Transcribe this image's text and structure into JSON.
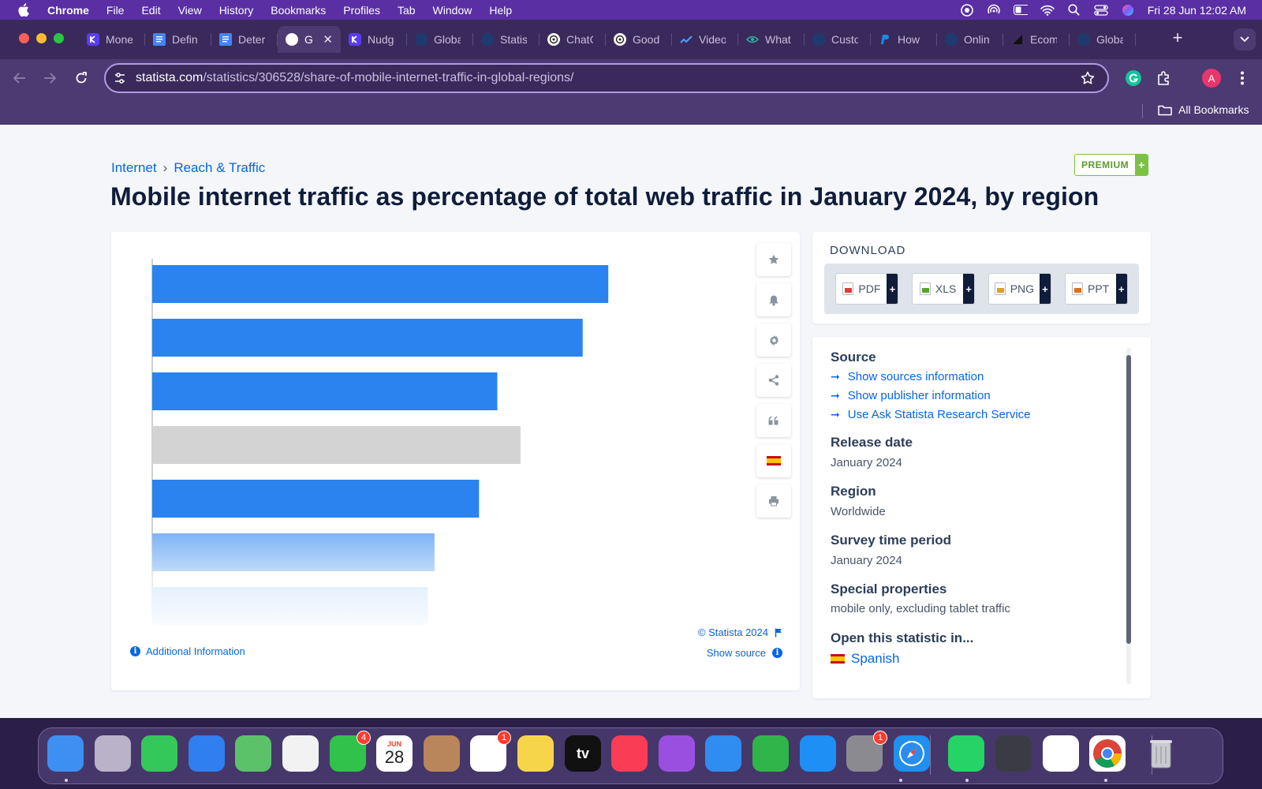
{
  "menubar": {
    "app": "Chrome",
    "items": [
      "File",
      "Edit",
      "View",
      "History",
      "Bookmarks",
      "Profiles",
      "Tab",
      "Window",
      "Help"
    ],
    "clock": "Fri 28 Jun  12:02 AM"
  },
  "tabs": [
    {
      "title": "Mone",
      "icon": "purple-k-icon",
      "color": "#5b3cf6"
    },
    {
      "title": "Defin",
      "icon": "google-docs-icon",
      "color": "#4285f4"
    },
    {
      "title": "Deter",
      "icon": "google-docs-icon",
      "color": "#4285f4"
    },
    {
      "title": "G",
      "icon": "statista-icon",
      "color": "#ffffff",
      "active": true
    },
    {
      "title": "Nudg",
      "icon": "purple-k-icon",
      "color": "#5b3cf6"
    },
    {
      "title": "Globa",
      "icon": "statista-icon",
      "color": "#1e3a6e"
    },
    {
      "title": "Statis",
      "icon": "statista-icon",
      "color": "#1e3a6e"
    },
    {
      "title": "ChatG",
      "icon": "chatgpt-icon",
      "color": "#ffffff"
    },
    {
      "title": "Good",
      "icon": "chatgpt-icon",
      "color": "#ffffff"
    },
    {
      "title": "Video",
      "icon": "trend-icon",
      "color": "#4aa3ff"
    },
    {
      "title": "What",
      "icon": "eye-icon",
      "color": "#2bb5a0"
    },
    {
      "title": "Custo",
      "icon": "statista-icon",
      "color": "#1e3a6e"
    },
    {
      "title": "How",
      "icon": "paypal-icon",
      "color": "#1e88e5"
    },
    {
      "title": "Onlin",
      "icon": "statista-icon",
      "color": "#1e3a6e"
    },
    {
      "title": "Ecom",
      "icon": "chart-icon",
      "color": "#222222"
    },
    {
      "title": "Globa",
      "icon": "statista-icon",
      "color": "#1e3a6e"
    }
  ],
  "toolbar": {
    "url_host": "statista.com",
    "url_path": "/statistics/306528/share-of-mobile-internet-traffic-in-global-regions/",
    "avatar_letter": "A"
  },
  "bookmarks": {
    "all_label": "All Bookmarks"
  },
  "page": {
    "breadcrumb": [
      "Internet",
      "Reach & Traffic"
    ],
    "premium_label": "PREMIUM",
    "premium_plus": "+",
    "title": "Mobile internet traffic as percentage of total web traffic in January 2024, by region",
    "copyright": "© Statista 2024",
    "show_source": "Show source",
    "additional_info": "Additional Information"
  },
  "chart_data": {
    "type": "bar",
    "orientation": "horizontal",
    "categories": [
      "",
      "",
      "",
      "",
      "",
      "",
      ""
    ],
    "values": [
      74.8,
      70.6,
      56.6,
      60.4,
      53.6,
      46.3,
      45.2
    ],
    "colors": [
      "#2a83ef",
      "#2a83ef",
      "#2a83ef",
      "#d3d3d3",
      "#2a83ef",
      "#7cb2f6",
      "#b9d6fa"
    ],
    "xlim": [
      0,
      100
    ],
    "note": ""
  },
  "download": {
    "heading": "DOWNLOAD",
    "buttons": [
      {
        "label": "PDF",
        "icon": "pdf-file-icon",
        "color": "#e23b3b"
      },
      {
        "label": "XLS",
        "icon": "xls-file-icon",
        "color": "#5aa332"
      },
      {
        "label": "PNG",
        "icon": "png-file-icon",
        "color": "#e0a020"
      },
      {
        "label": "PPT",
        "icon": "ppt-file-icon",
        "color": "#e0701e"
      }
    ],
    "plus": "+"
  },
  "info": {
    "source_heading": "Source",
    "links": [
      "Show sources information",
      "Show publisher information",
      "Use Ask Statista Research Service"
    ],
    "release_heading": "Release date",
    "release_value": "January 2024",
    "region_heading": "Region",
    "region_value": "Worldwide",
    "survey_heading": "Survey time period",
    "survey_value": "January 2024",
    "special_heading": "Special properties",
    "special_value": "mobile only, excluding tablet traffic",
    "open_heading": "Open this statistic in...",
    "open_language": "Spanish"
  },
  "dock": [
    {
      "name": "finder-icon",
      "color": "#3d8ff2"
    },
    {
      "name": "launchpad-icon",
      "color": "#b9b2c9"
    },
    {
      "name": "messages-icon",
      "color": "#34c759"
    },
    {
      "name": "mail-icon",
      "color": "#2f7ff0"
    },
    {
      "name": "maps-icon",
      "color": "#5bc26a"
    },
    {
      "name": "photos-icon",
      "color": "#f2f2f2"
    },
    {
      "name": "facetime-icon",
      "color": "#30c24a",
      "badge": "4"
    },
    {
      "name": "calendar-icon",
      "color": "#ffffff",
      "label": "28",
      "sublabel": "JUN"
    },
    {
      "name": "contacts-icon",
      "color": "#b8865a"
    },
    {
      "name": "reminders-icon",
      "color": "#ffffff",
      "badge": "1"
    },
    {
      "name": "notes-icon",
      "color": "#f7d54a"
    },
    {
      "name": "apple-tv-icon",
      "color": "#111111",
      "label": "tv"
    },
    {
      "name": "music-icon",
      "color": "#fa3c55"
    },
    {
      "name": "podcasts-icon",
      "color": "#9b4fe0"
    },
    {
      "name": "keynote-icon",
      "color": "#2f8cf0"
    },
    {
      "name": "numbers-icon",
      "color": "#2fb548"
    },
    {
      "name": "app-store-icon",
      "color": "#1e8ff5"
    },
    {
      "name": "system-settings-icon",
      "color": "#8a8a90",
      "badge": "1"
    },
    {
      "name": "safari-icon",
      "color": "#1e90f0"
    },
    {
      "name": "whatsapp-icon",
      "color": "#25d366"
    },
    {
      "name": "quicktime-icon",
      "color": "#3b3b44"
    },
    {
      "name": "slack-icon",
      "color": "#ffffff"
    },
    {
      "name": "chrome-icon",
      "color": "#ffffff"
    },
    {
      "name": "trash-icon",
      "color": "#c9c9d0"
    }
  ]
}
